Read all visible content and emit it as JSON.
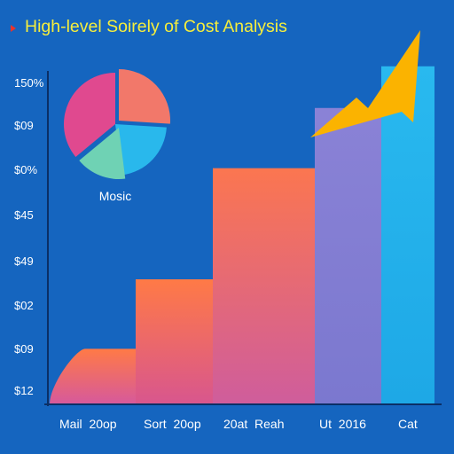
{
  "colors": {
    "background": "#1565bf",
    "title": "#f6ee3c",
    "title_marker": "#e8342c",
    "axis": "#0b2f66",
    "tick_text": "#ffffff",
    "arrow": "#fbb300",
    "pie": [
      "#f2786a",
      "#29b8ec",
      "#6fd2b4",
      "#e0498f"
    ],
    "bars": [
      [
        "#ff7a46",
        "#d6599c"
      ],
      [
        "#ff7a46",
        "#d8568e"
      ],
      [
        "#fb7650",
        "#cf5d9c"
      ],
      [
        "#8a82d6",
        "#7b78cf"
      ],
      [
        "#29b9ef",
        "#1ea8e6"
      ]
    ]
  },
  "chart_data": [
    {
      "type": "bar",
      "title": "High-level Soirely of Cost Analysis",
      "y_tick_labels": [
        "$12",
        "$09",
        "$02",
        "$49",
        "$45",
        "$0%",
        "$09",
        "150%"
      ],
      "ylim": [
        0,
        7.2
      ],
      "categories": [
        "Mail  20op",
        "Sort  20op",
        "20at  Reah",
        "Ut  2016",
        "Cat"
      ],
      "values": [
        1.2,
        2.7,
        5.1,
        6.4,
        7.3
      ],
      "grid": false,
      "annotations": [
        "upward-arrow"
      ]
    },
    {
      "type": "pie",
      "label": "Mosic",
      "values": [
        26,
        22,
        16,
        36
      ]
    }
  ]
}
